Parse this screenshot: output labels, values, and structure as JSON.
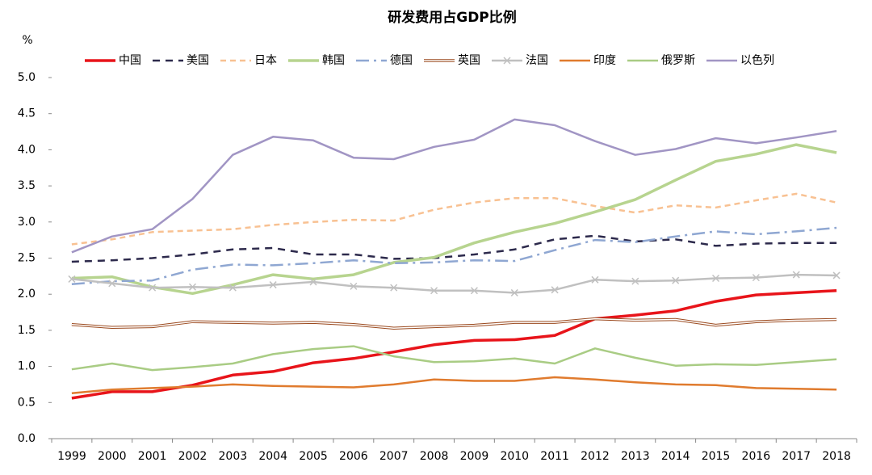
{
  "chart_data": {
    "type": "line",
    "title": "研发费用占GDP比例",
    "ylabel": "%",
    "categories": [
      "1999",
      "2000",
      "2001",
      "2002",
      "2003",
      "2004",
      "2005",
      "2006",
      "2007",
      "2008",
      "2009",
      "2010",
      "2011",
      "2012",
      "2013",
      "2014",
      "2015",
      "2016",
      "2017",
      "2018"
    ],
    "ylim": [
      0,
      5
    ],
    "yticks": [
      {
        "value": 0,
        "label": "0.0"
      },
      0.5,
      {
        "value": 1,
        "label": "1.0"
      },
      1.5,
      {
        "value": 2,
        "label": "2.0"
      },
      2.5,
      {
        "value": 3,
        "label": "3.0"
      },
      3.5,
      {
        "value": 4,
        "label": "4.0"
      },
      4.5,
      {
        "value": 5,
        "label": "5.0"
      }
    ],
    "grid": false,
    "legend": "top",
    "series": [
      {
        "name": "中国",
        "color": "#e8141a",
        "width": 3.5,
        "values": [
          0.56,
          0.65,
          0.65,
          0.74,
          0.88,
          0.93,
          1.05,
          1.11,
          1.2,
          1.3,
          1.36,
          1.37,
          1.43,
          1.66,
          1.71,
          1.77,
          1.9,
          1.99,
          2.02,
          2.05
        ]
      },
      {
        "name": "美国",
        "color": "#2d2a4c",
        "width": 2.5,
        "dash": "9,7",
        "values": [
          2.45,
          2.47,
          2.5,
          2.55,
          2.62,
          2.64,
          2.55,
          2.55,
          2.49,
          2.5,
          2.55,
          2.62,
          2.76,
          2.81,
          2.73,
          2.76,
          2.67,
          2.7,
          2.71,
          2.71
        ]
      },
      {
        "name": "日本",
        "color": "#f8c192",
        "width": 2.5,
        "dash": "7,5",
        "values": [
          2.69,
          2.76,
          2.86,
          2.88,
          2.9,
          2.96,
          3.0,
          3.03,
          3.02,
          3.17,
          3.27,
          3.33,
          3.33,
          3.22,
          3.13,
          3.23,
          3.2,
          3.3,
          3.39,
          3.27
        ]
      },
      {
        "name": "韩国",
        "color": "#b7d48f",
        "width": 3.5,
        "values": [
          2.22,
          2.24,
          2.1,
          2.01,
          2.13,
          2.27,
          2.21,
          2.27,
          2.44,
          2.51,
          2.71,
          2.86,
          2.98,
          3.14,
          3.31,
          3.58,
          3.84,
          3.94,
          4.07,
          3.96
        ]
      },
      {
        "name": "德国",
        "color": "#8fa7d2",
        "width": 2.5,
        "dash": "16,6,3,6",
        "values": [
          2.14,
          2.18,
          2.19,
          2.34,
          2.41,
          2.4,
          2.43,
          2.47,
          2.43,
          2.44,
          2.47,
          2.46,
          2.61,
          2.75,
          2.72,
          2.8,
          2.87,
          2.83,
          2.87,
          2.92
        ]
      },
      {
        "name": "英国",
        "color": "#9b4a1f",
        "width": 3.5,
        "double": true,
        "values": [
          1.58,
          1.54,
          1.55,
          1.62,
          1.61,
          1.6,
          1.61,
          1.58,
          1.53,
          1.55,
          1.57,
          1.61,
          1.61,
          1.66,
          1.64,
          1.65,
          1.57,
          1.62,
          1.64,
          1.65
        ]
      },
      {
        "name": "法国",
        "color": "#c0c0c0",
        "width": 2.5,
        "marker": "x",
        "values": [
          2.21,
          2.15,
          2.09,
          2.1,
          2.09,
          2.13,
          2.17,
          2.11,
          2.09,
          2.05,
          2.05,
          2.02,
          2.06,
          2.2,
          2.18,
          2.19,
          2.22,
          2.23,
          2.27,
          2.26
        ]
      },
      {
        "name": "印度",
        "color": "#e07b2e",
        "width": 2.5,
        "values": [
          0.63,
          0.68,
          0.7,
          0.72,
          0.75,
          0.73,
          0.72,
          0.71,
          0.75,
          0.82,
          0.8,
          0.8,
          0.85,
          0.82,
          0.78,
          0.75,
          0.74,
          0.7,
          0.69,
          0.68
        ]
      },
      {
        "name": "俄罗斯",
        "color": "#a9cc84",
        "width": 2.5,
        "values": [
          0.96,
          1.04,
          0.95,
          0.99,
          1.04,
          1.17,
          1.24,
          1.28,
          1.14,
          1.06,
          1.07,
          1.11,
          1.04,
          1.25,
          1.12,
          1.01,
          1.03,
          1.02,
          1.06,
          1.1
        ]
      },
      {
        "name": "以色列",
        "color": "#a195c4",
        "width": 2.5,
        "values": [
          2.58,
          2.8,
          2.9,
          3.32,
          3.93,
          4.18,
          4.13,
          3.89,
          3.87,
          4.04,
          4.14,
          4.42,
          4.34,
          4.12,
          3.93,
          4.01,
          4.16,
          4.09,
          4.17,
          4.26
        ]
      }
    ]
  }
}
